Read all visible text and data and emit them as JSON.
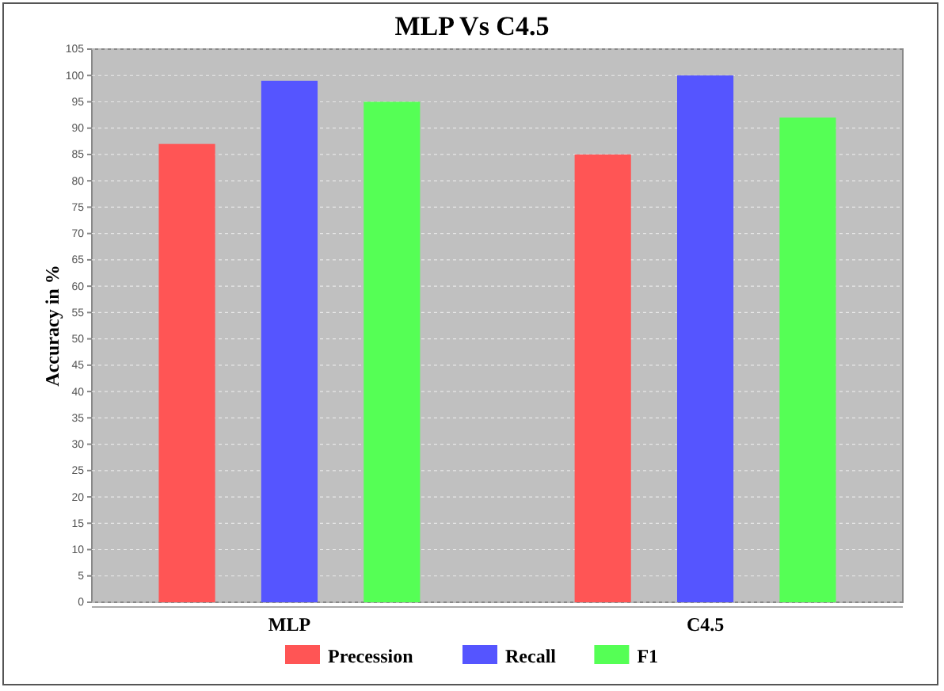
{
  "chart_data": {
    "type": "bar",
    "title": "MLP Vs C4.5",
    "ylabel": "Accuracy in %",
    "categories": [
      "MLP",
      "C4.5"
    ],
    "series": [
      {
        "name": "Precession",
        "color": "#ff5555",
        "values": [
          87,
          85
        ]
      },
      {
        "name": "Recall",
        "color": "#5555ff",
        "values": [
          99,
          100
        ]
      },
      {
        "name": "F1",
        "color": "#55ff55",
        "values": [
          95,
          92
        ]
      }
    ],
    "ylim": [
      0,
      105
    ],
    "yticks": [
      0,
      5,
      10,
      15,
      20,
      25,
      30,
      35,
      40,
      45,
      50,
      55,
      60,
      65,
      70,
      75,
      80,
      85,
      90,
      95,
      100,
      105
    ],
    "grid": "y",
    "legend": "bottom"
  }
}
